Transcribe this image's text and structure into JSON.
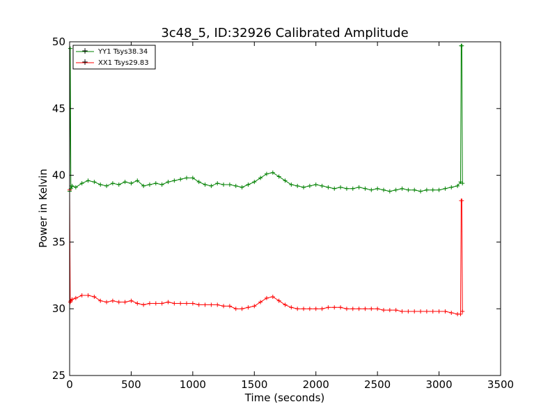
{
  "chart_data": {
    "type": "line",
    "title": "3c48_5, ID:32926 Calibrated Amplitude",
    "xlabel": "Time (seconds)",
    "ylabel": "Power in Kelvin",
    "xlim": [
      0,
      3500
    ],
    "ylim": [
      25,
      50
    ],
    "xticks": [
      0,
      500,
      1000,
      1500,
      2000,
      2500,
      3000,
      3500
    ],
    "yticks": [
      25,
      30,
      35,
      40,
      45,
      50
    ],
    "grid": false,
    "legend_placement": "top-left",
    "marker": "plus",
    "series": [
      {
        "name": "YY1 Tsys38.34",
        "color": "#008000",
        "x": [
          0,
          5,
          10,
          20,
          50,
          100,
          150,
          200,
          250,
          300,
          350,
          400,
          450,
          500,
          550,
          600,
          650,
          700,
          750,
          800,
          850,
          900,
          950,
          1000,
          1050,
          1100,
          1150,
          1200,
          1250,
          1300,
          1350,
          1400,
          1450,
          1500,
          1550,
          1600,
          1650,
          1700,
          1750,
          1800,
          1850,
          1900,
          1950,
          2000,
          2050,
          2100,
          2150,
          2200,
          2250,
          2300,
          2350,
          2400,
          2450,
          2500,
          2550,
          2600,
          2650,
          2700,
          2750,
          2800,
          2850,
          2900,
          2950,
          3000,
          3050,
          3100,
          3150,
          3175,
          3180,
          3185,
          3190
        ],
        "y": [
          38.8,
          49.5,
          39.0,
          39.2,
          39.1,
          39.4,
          39.6,
          39.5,
          39.3,
          39.2,
          39.4,
          39.3,
          39.5,
          39.4,
          39.6,
          39.2,
          39.3,
          39.4,
          39.3,
          39.5,
          39.6,
          39.7,
          39.8,
          39.8,
          39.5,
          39.3,
          39.2,
          39.4,
          39.3,
          39.3,
          39.2,
          39.1,
          39.3,
          39.5,
          39.8,
          40.1,
          40.2,
          39.9,
          39.6,
          39.3,
          39.2,
          39.1,
          39.2,
          39.3,
          39.2,
          39.1,
          39.0,
          39.1,
          39.0,
          39.0,
          39.1,
          39.0,
          38.9,
          39.0,
          38.9,
          38.8,
          38.9,
          39.0,
          38.9,
          38.9,
          38.8,
          38.9,
          38.9,
          38.9,
          39.0,
          39.1,
          39.2,
          39.5,
          49.7,
          49.7,
          39.4
        ]
      },
      {
        "name": "XX1 Tsys29.83",
        "color": "#ff0000",
        "x": [
          0,
          5,
          10,
          20,
          50,
          100,
          150,
          200,
          250,
          300,
          350,
          400,
          450,
          500,
          550,
          600,
          650,
          700,
          750,
          800,
          850,
          900,
          950,
          1000,
          1050,
          1100,
          1150,
          1200,
          1250,
          1300,
          1350,
          1400,
          1450,
          1500,
          1550,
          1600,
          1650,
          1700,
          1750,
          1800,
          1850,
          1900,
          1950,
          2000,
          2050,
          2100,
          2150,
          2200,
          2250,
          2300,
          2350,
          2400,
          2450,
          2500,
          2550,
          2600,
          2650,
          2700,
          2750,
          2800,
          2850,
          2900,
          2950,
          3000,
          3050,
          3100,
          3150,
          3175,
          3180,
          3185,
          3190
        ],
        "y": [
          38.9,
          30.5,
          30.6,
          30.7,
          30.8,
          31.0,
          31.0,
          30.9,
          30.6,
          30.5,
          30.6,
          30.5,
          30.5,
          30.6,
          30.4,
          30.3,
          30.4,
          30.4,
          30.4,
          30.5,
          30.4,
          30.4,
          30.4,
          30.4,
          30.3,
          30.3,
          30.3,
          30.3,
          30.2,
          30.2,
          30.0,
          30.0,
          30.1,
          30.2,
          30.5,
          30.8,
          30.9,
          30.6,
          30.3,
          30.1,
          30.0,
          30.0,
          30.0,
          30.0,
          30.0,
          30.1,
          30.1,
          30.1,
          30.0,
          30.0,
          30.0,
          30.0,
          30.0,
          30.0,
          29.9,
          29.9,
          29.9,
          29.8,
          29.8,
          29.8,
          29.8,
          29.8,
          29.8,
          29.8,
          29.8,
          29.7,
          29.6,
          29.6,
          38.1,
          38.1,
          29.8
        ]
      }
    ]
  }
}
